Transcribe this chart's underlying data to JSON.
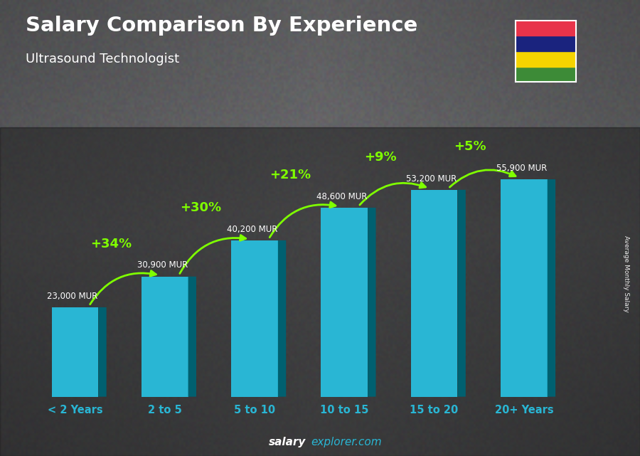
{
  "categories": [
    "< 2 Years",
    "2 to 5",
    "5 to 10",
    "10 to 15",
    "15 to 20",
    "20+ Years"
  ],
  "values": [
    23000,
    30900,
    40200,
    48600,
    53200,
    55900
  ],
  "labels": [
    "23,000 MUR",
    "30,900 MUR",
    "40,200 MUR",
    "48,600 MUR",
    "53,200 MUR",
    "55,900 MUR"
  ],
  "pct_labels": [
    "+34%",
    "+30%",
    "+21%",
    "+9%",
    "+5%"
  ],
  "bar_color": "#29b6d4",
  "bar_dark_color": "#006070",
  "bar_top_color": "#4dd0e1",
  "title": "Salary Comparison By Experience",
  "subtitle": "Ultrasound Technologist",
  "ylabel_side": "Average Monthly Salary",
  "footer_bold": "salary",
  "footer_rest": "explorer.com",
  "title_color": "#ffffff",
  "label_color": "#ffffff",
  "pct_color": "#7fff00",
  "arrow_color": "#7fff00",
  "flag_colors_top_to_bot": [
    "#e8334a",
    "#1a237e",
    "#f5d400",
    "#3d8b37"
  ],
  "ylim_max": 68000,
  "bar_width": 0.52,
  "bar_depth": 0.09
}
